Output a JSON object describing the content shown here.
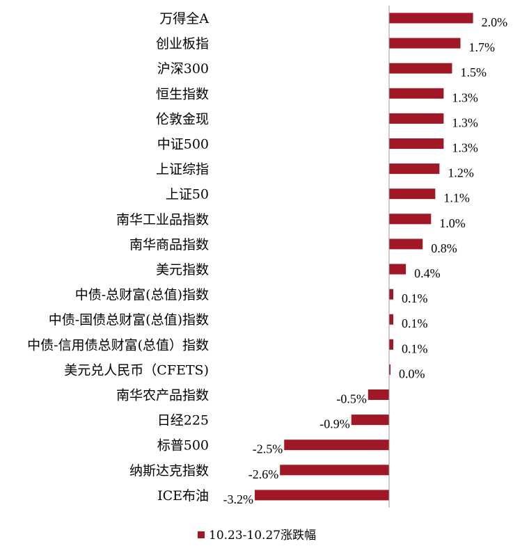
{
  "chart_data": {
    "type": "bar",
    "orientation": "horizontal",
    "categories": [
      "万得全A",
      "创业板指",
      "沪深300",
      "恒生指数",
      "伦敦金现",
      "中证500",
      "上证综指",
      "上证50",
      "南华工业品指数",
      "南华商品指数",
      "美元指数",
      "中债-总财富(总值)指数",
      "中债-国债总财富(总值)指数",
      "中债-信用债总财富(总值）指数",
      "美元兑人民币（CFETS)",
      "南华农产品指数",
      "日经225",
      "标普500",
      "纳斯达克指数",
      "ICE布油"
    ],
    "series": [
      {
        "name": "10.23-10.27涨跌幅",
        "values": [
          2.0,
          1.7,
          1.5,
          1.3,
          1.3,
          1.3,
          1.2,
          1.1,
          1.0,
          0.8,
          0.4,
          0.1,
          0.1,
          0.1,
          0.0,
          -0.5,
          -0.9,
          -2.5,
          -2.6,
          -3.2
        ],
        "value_labels": [
          "2.0%",
          "1.7%",
          "1.5%",
          "1.3%",
          "1.3%",
          "1.3%",
          "1.2%",
          "1.1%",
          "1.0%",
          "0.8%",
          "0.4%",
          "0.1%",
          "0.1%",
          "0.1%",
          "0.0%",
          "-0.5%",
          "-0.9%",
          "-2.5%",
          "-2.6%",
          "-3.2%"
        ]
      }
    ],
    "bar_color": "#A01825",
    "legend_position": "bottom",
    "grid": false,
    "xlim": [
      -3.2,
      2.0
    ]
  }
}
